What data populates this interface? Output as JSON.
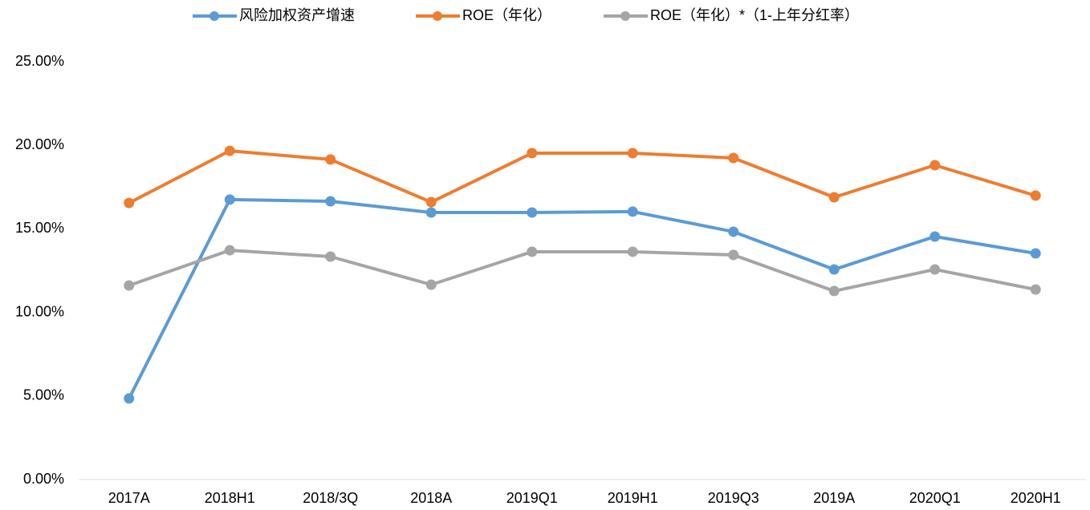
{
  "chart_data": {
    "type": "line",
    "categories": [
      "2017A",
      "2018H1",
      "2018/3Q",
      "2018A",
      "2019Q1",
      "2019H1",
      "2019Q3",
      "2019A",
      "2020Q1",
      "2020H1"
    ],
    "series": [
      {
        "name": "风险加权资产增速",
        "color": "#5b9bd5",
        "values": [
          4.85,
          16.75,
          16.65,
          15.98,
          15.98,
          16.03,
          14.83,
          12.57,
          14.54,
          13.53
        ]
      },
      {
        "name": "ROE（年化）",
        "color": "#ed7d31",
        "values": [
          16.55,
          19.67,
          19.15,
          16.6,
          19.53,
          19.53,
          19.24,
          16.89,
          18.81,
          16.99
        ]
      },
      {
        "name": "ROE（年化）*（1-上年分红率）",
        "color": "#a5a5a5",
        "values": [
          11.61,
          13.72,
          13.34,
          11.66,
          13.63,
          13.63,
          13.44,
          11.28,
          12.57,
          11.37
        ]
      }
    ],
    "ylim": [
      0,
      25
    ],
    "yticks": [
      {
        "value": 0,
        "label": "0.00%"
      },
      {
        "value": 5,
        "label": "5.00%"
      },
      {
        "value": 10,
        "label": "10.00%"
      },
      {
        "value": 15,
        "label": "15.00%"
      },
      {
        "value": 20,
        "label": "20.00%"
      },
      {
        "value": 25,
        "label": "25.00%"
      }
    ],
    "legend": "top"
  }
}
